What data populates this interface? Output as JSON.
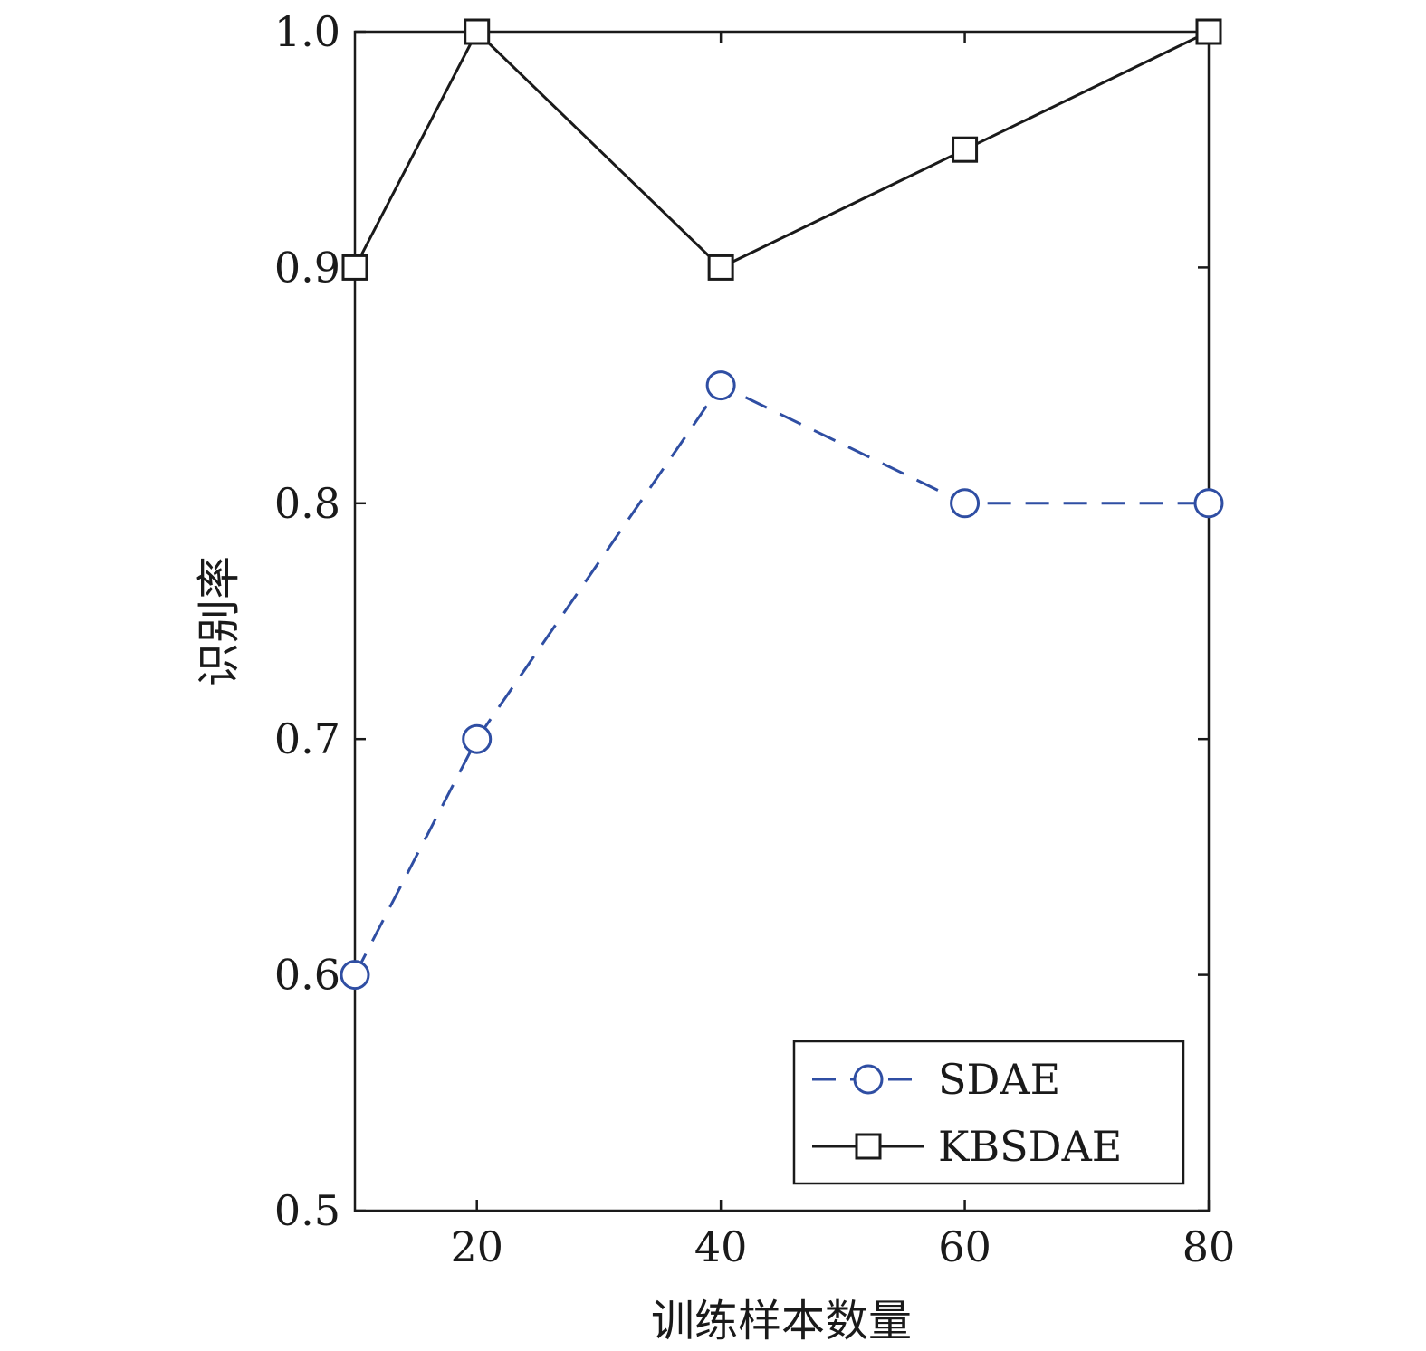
{
  "chart_data": {
    "type": "line",
    "xlabel": "训练样本数量",
    "ylabel": "识别率",
    "xlim": [
      10,
      80
    ],
    "ylim": [
      0.5,
      1.0
    ],
    "x_ticks": [
      20,
      40,
      60,
      80
    ],
    "y_ticks": [
      0.5,
      0.6,
      0.7,
      0.8,
      0.9,
      1.0
    ],
    "x_tick_labels": [
      "20",
      "40",
      "60",
      "80"
    ],
    "y_tick_labels": [
      "0.5",
      "0.6",
      "0.7",
      "0.8",
      "0.9",
      "1.0"
    ],
    "grid": false,
    "legend_position": "bottom-right",
    "series": [
      {
        "name": "SDAE",
        "x": [
          10,
          20,
          40,
          60,
          80
        ],
        "y": [
          0.6,
          0.7,
          0.85,
          0.8,
          0.8
        ],
        "color": "#2f4ea3",
        "line_style": "dashed",
        "marker": "circle"
      },
      {
        "name": "KBSDAE",
        "x": [
          10,
          20,
          40,
          60,
          80
        ],
        "y": [
          0.9,
          1.0,
          0.9,
          0.95,
          1.0
        ],
        "color": "#1a1a1a",
        "line_style": "solid",
        "marker": "square"
      }
    ]
  }
}
